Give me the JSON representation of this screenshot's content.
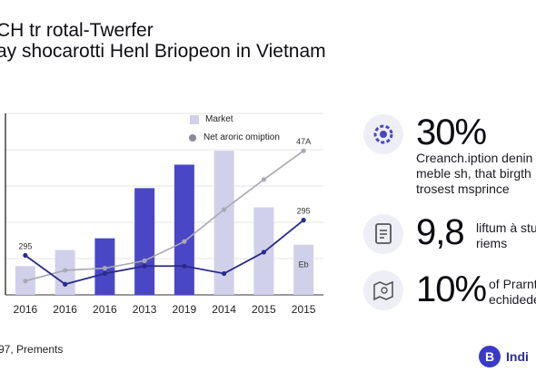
{
  "header": {
    "title_line1": "CH tr rotal-Twerfer",
    "title_line2": "ay shocarotti Henl Briopeon in Vietnam"
  },
  "chart_data": {
    "type": "bar",
    "categories": [
      "2016",
      "2016",
      "2016",
      "2013",
      "2019",
      "2014",
      "2015",
      "2015"
    ],
    "series": [
      {
        "name": "Market",
        "kind": "bar-light",
        "color": "#d0d0ea",
        "values": [
          null,
          null,
          null,
          null,
          null,
          135,
          82,
          null
        ]
      },
      {
        "name": "",
        "kind": "bar-dark",
        "color": "#4a47c6",
        "values": [
          null,
          null,
          53,
          100,
          122,
          null,
          null,
          null
        ]
      },
      {
        "name": "",
        "kind": "bar-light-short",
        "color": "#d0d0ea",
        "values": [
          27,
          42,
          null,
          null,
          null,
          null,
          null,
          47
        ]
      },
      {
        "name": "Net aroric omiption",
        "kind": "line-gray",
        "color": "#a8a8b4",
        "values": [
          13,
          23,
          25,
          32,
          50,
          80,
          108,
          135
        ]
      },
      {
        "name": "",
        "kind": "line-dark",
        "color": "#2a2a8a",
        "values": [
          37,
          10,
          20,
          27,
          27,
          20,
          40,
          70
        ]
      }
    ],
    "annotations": [
      {
        "text": "295",
        "x_index": 0,
        "y": 37
      },
      {
        "text": "47A",
        "x_index": 7,
        "y": 135
      },
      {
        "text": "295",
        "x_index": 7,
        "y": 70
      },
      {
        "text": "Eb",
        "x_index": 7,
        "y": 20
      }
    ],
    "ylim": [
      0,
      170
    ],
    "grid": true,
    "legend_position": "top-right"
  },
  "stats": [
    {
      "icon": "gear-people-icon",
      "value": "30%",
      "lines": [
        "Creanch.iption denin",
        "meble sh, that birgth",
        "trosest msprince"
      ]
    },
    {
      "icon": "document-icon",
      "value": "9,8",
      "lines": [
        "liftum à stu",
        "riems"
      ]
    },
    {
      "icon": "map-icon",
      "value": "10%",
      "lines": [
        "of Prarnt",
        "echidede"
      ]
    }
  ],
  "footer": {
    "source": "97, Prements"
  },
  "brand": {
    "badge": "B",
    "name": "Indi"
  },
  "colors": {
    "accent": "#4a47c6",
    "accent_light": "#d0d0ea",
    "icon_bg": "#eeeef6"
  }
}
